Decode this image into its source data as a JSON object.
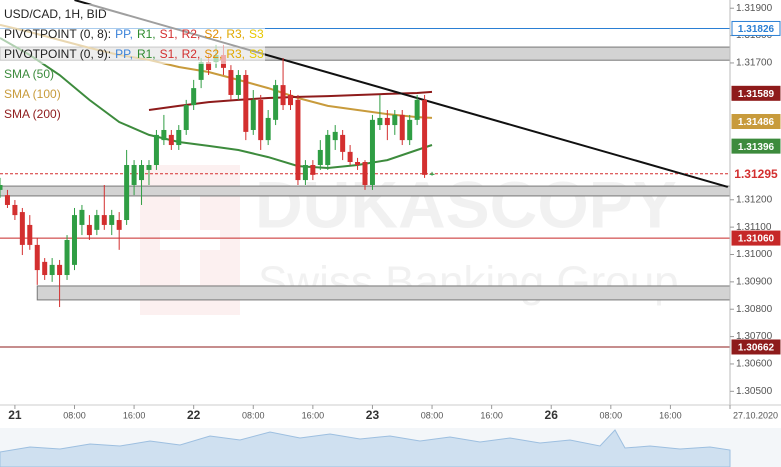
{
  "chart_data": {
    "type": "candlestick",
    "title": "USD/CAD, 1H, BID",
    "watermark": {
      "title": "DUKASCOPY",
      "subtitle": "Swiss Banking Group"
    },
    "up_color": "#2f9e44",
    "down_color": "#d32f2f",
    "x": [
      -2,
      -1,
      0,
      1,
      2,
      3,
      4,
      5,
      6,
      7,
      8,
      9,
      10,
      11,
      12,
      13,
      14,
      15,
      16,
      17,
      18,
      19,
      20,
      21,
      22,
      23,
      24,
      25,
      26,
      27,
      28,
      29,
      30,
      31,
      32,
      33,
      34,
      35,
      36,
      37,
      38,
      39,
      40,
      41,
      42,
      43,
      44,
      45,
      46,
      47,
      48,
      49,
      50,
      51,
      52,
      53,
      54,
      55,
      56
    ],
    "open": [
      1.31236,
      1.31217,
      1.31181,
      1.31155,
      1.31108,
      1.31035,
      1.30973,
      1.30925,
      1.30962,
      1.30925,
      1.30962,
      1.31108,
      1.31108,
      1.3109,
      1.31144,
      1.31108,
      1.31126,
      1.31126,
      1.31254,
      1.31272,
      1.31309,
      1.31327,
      1.31418,
      1.31437,
      1.314,
      1.31455,
      1.31546,
      1.31638,
      1.31703,
      1.31703,
      1.31729,
      1.31674,
      1.31583,
      1.31656,
      1.31455,
      1.31565,
      1.31418,
      1.31492,
      1.31619,
      1.31583,
      1.31565,
      1.31272,
      1.31327,
      1.31327,
      1.31327,
      1.31418,
      1.31437,
      1.31375,
      1.31338,
      1.31338,
      1.31254,
      1.31473,
      1.31499,
      1.31473,
      1.3151,
      1.31418,
      1.31492,
      1.31565,
      1.31291
    ],
    "high": [
      1.3128,
      1.31236,
      1.31199,
      1.3117,
      1.31144,
      1.3106,
      1.30987,
      1.30987,
      1.3098,
      1.31071,
      1.3117,
      1.31181,
      1.31144,
      1.31163,
      1.31254,
      1.31163,
      1.31155,
      1.31382,
      1.31345,
      1.31345,
      1.31345,
      1.31455,
      1.3151,
      1.31455,
      1.31473,
      1.31565,
      1.31638,
      1.31718,
      1.31729,
      1.31766,
      1.31766,
      1.31692,
      1.31674,
      1.31674,
      1.31601,
      1.31583,
      1.31528,
      1.31638,
      1.31718,
      1.31601,
      1.31583,
      1.31345,
      1.31345,
      1.31418,
      1.31455,
      1.31473,
      1.31455,
      1.314,
      1.31353,
      1.31345,
      1.3151,
      1.31583,
      1.31528,
      1.31528,
      1.31528,
      1.3151,
      1.31583,
      1.31583,
      1.31302
    ],
    "low": [
      1.31207,
      1.3117,
      1.31126,
      1.30998,
      1.31017,
      1.30889,
      1.30907,
      1.309,
      1.30808,
      1.30907,
      1.30943,
      1.31071,
      1.31053,
      1.31071,
      1.3109,
      1.31071,
      1.31017,
      1.31108,
      1.31217,
      1.31181,
      1.31254,
      1.31309,
      1.314,
      1.31382,
      1.31382,
      1.31437,
      1.31528,
      1.31608,
      1.31656,
      1.31682,
      1.31656,
      1.31565,
      1.31565,
      1.31418,
      1.31437,
      1.31382,
      1.314,
      1.31473,
      1.31528,
      1.31528,
      1.31254,
      1.31254,
      1.31272,
      1.31309,
      1.31309,
      1.31382,
      1.31345,
      1.31327,
      1.31309,
      1.31236,
      1.31236,
      1.31455,
      1.31418,
      1.31437,
      1.314,
      1.314,
      1.31473,
      1.3128,
      1.31288
    ],
    "close": [
      1.31254,
      1.31181,
      1.31144,
      1.31035,
      1.31035,
      1.30943,
      1.30925,
      1.30962,
      1.30925,
      1.31053,
      1.31144,
      1.31163,
      1.31071,
      1.31144,
      1.31108,
      1.31144,
      1.3109,
      1.31327,
      1.31327,
      1.31327,
      1.31327,
      1.31437,
      1.31455,
      1.314,
      1.31455,
      1.31546,
      1.31608,
      1.31703,
      1.31674,
      1.31729,
      1.31682,
      1.31583,
      1.31656,
      1.31448,
      1.31565,
      1.31418,
      1.31499,
      1.31619,
      1.31546,
      1.31546,
      1.31272,
      1.31327,
      1.31291,
      1.31382,
      1.31437,
      1.31448,
      1.31375,
      1.31338,
      1.31327,
      1.31254,
      1.31492,
      1.31499,
      1.31473,
      1.3151,
      1.31418,
      1.31492,
      1.31565,
      1.31291,
      1.31295
    ],
    "pivot_legends": [
      {
        "label": "PIVOTPOINT (0, 8):",
        "items": [
          "PP,",
          "R1,",
          "S1,",
          "R2,",
          "S2,",
          "R3,",
          "S3"
        ],
        "colors": [
          "#3b82d8",
          "#2e8b2e",
          "#d32f2f",
          "#d32f2f",
          "#e08a00",
          "#e0a800",
          "#e6c800"
        ]
      },
      {
        "label": "PIVOTPOINT (0, 9):",
        "items": [
          "PP,",
          "R1,",
          "S1,",
          "R2,",
          "S2,",
          "R3,",
          "S3"
        ],
        "colors": [
          "#3b82d8",
          "#2e8b2e",
          "#d32f2f",
          "#d32f2f",
          "#e08a00",
          "#e0a800",
          "#e6c800"
        ]
      }
    ],
    "lines": [
      {
        "name": "SMA (50)",
        "color": "#3d8b3d",
        "x": [
          -2,
          2,
          6,
          10,
          14,
          18,
          22,
          26,
          30,
          34,
          38,
          42,
          46,
          50,
          54,
          56
        ],
        "values": [
          1.31791,
          1.31729,
          1.31656,
          1.31565,
          1.31484,
          1.31437,
          1.31411,
          1.31397,
          1.31382,
          1.31356,
          1.31323,
          1.31316,
          1.31327,
          1.31345,
          1.31382,
          1.314
        ]
      },
      {
        "name": "SMA (100)",
        "color": "#c89b3c",
        "x": [
          -2,
          2,
          6,
          10,
          14,
          18,
          22,
          26,
          30,
          34,
          38,
          42,
          46,
          50,
          54,
          56
        ],
        "values": [
          1.31839,
          1.31813,
          1.31784,
          1.31755,
          1.31729,
          1.31711,
          1.31685,
          1.31667,
          1.31638,
          1.31608,
          1.31572,
          1.31543,
          1.31528,
          1.31513,
          1.31502,
          1.31499
        ]
      },
      {
        "name": "SMA (200)",
        "color": "#8e1b1b",
        "x": [
          -2,
          2,
          6,
          10,
          14,
          18,
          22,
          26,
          30,
          34,
          38,
          42,
          46,
          50,
          54,
          56
        ],
        "values": [
          null,
          null,
          null,
          null,
          null,
          1.31528,
          1.31543,
          1.31557,
          1.31565,
          1.31572,
          1.31576,
          1.31579,
          1.31583,
          1.31587,
          1.3159,
          1.31594
        ]
      }
    ],
    "trendline": {
      "color": "#111111",
      "x": [
        8,
        95.7
      ],
      "values": [
        1.3193,
        1.31247
      ]
    },
    "zones": [
      {
        "from": 1.31758,
        "to": 1.3171,
        "x_start": -2
      },
      {
        "from": 1.3125,
        "to": 1.31214,
        "x_start": -2
      },
      {
        "from": 1.30885,
        "to": 1.30834,
        "x_start": 3
      }
    ],
    "levels": [
      {
        "value": 1.31826,
        "color": "#2a7fd4",
        "line": "solid",
        "tag": "outline"
      },
      {
        "value": 1.31589,
        "color": "#8e1b1b",
        "line": "none",
        "tag": "filled"
      },
      {
        "value": 1.31486,
        "color": "#c89b3c",
        "line": "none",
        "tag": "filled"
      },
      {
        "value": 1.31396,
        "color": "#3d8b3d",
        "line": "none",
        "tag": "filled"
      },
      {
        "value": 1.31295,
        "color": "#d32f2f",
        "line": "dashed",
        "tag": "bold"
      },
      {
        "value": 1.3106,
        "label": "1.31060",
        "color": "#c62828",
        "line": "solid",
        "tag": "filled"
      },
      {
        "value": 1.30662,
        "color": "#8e1b1b",
        "line": "solid",
        "tag": "filled"
      }
    ],
    "xlim": [
      -2,
      96
    ],
    "ylim": [
      1.3045,
      1.3193
    ],
    "xticks": [
      {
        "value": 0,
        "label": "21"
      },
      {
        "value": 8,
        "label": "08:00"
      },
      {
        "value": 16,
        "label": "16:00"
      },
      {
        "value": 24,
        "label": "22"
      },
      {
        "value": 32,
        "label": "08:00"
      },
      {
        "value": 40,
        "label": "16:00"
      },
      {
        "value": 48,
        "label": "23"
      },
      {
        "value": 56,
        "label": "08:00"
      },
      {
        "value": 64,
        "label": "16:00"
      },
      {
        "value": 72,
        "label": "26"
      },
      {
        "value": 80,
        "label": "08:00"
      },
      {
        "value": 88,
        "label": "16:00"
      },
      {
        "value": 96,
        "label": "27.10.2020"
      }
    ],
    "yticks": [
      {
        "value": 1.319,
        "label": "1.31900"
      },
      {
        "value": 1.318,
        "label": "1.31800"
      },
      {
        "value": 1.317,
        "label": "1.31700"
      },
      {
        "value": 1.312,
        "label": "1.31200"
      },
      {
        "value": 1.311,
        "label": "1.31100"
      },
      {
        "value": 1.31,
        "label": "1.31000"
      },
      {
        "value": 1.309,
        "label": "1.30900"
      },
      {
        "value": 1.308,
        "label": "1.30800"
      },
      {
        "value": 1.307,
        "label": "1.30700"
      },
      {
        "value": 1.306,
        "label": "1.30600"
      },
      {
        "value": 1.305,
        "label": "1.30500"
      }
    ]
  }
}
